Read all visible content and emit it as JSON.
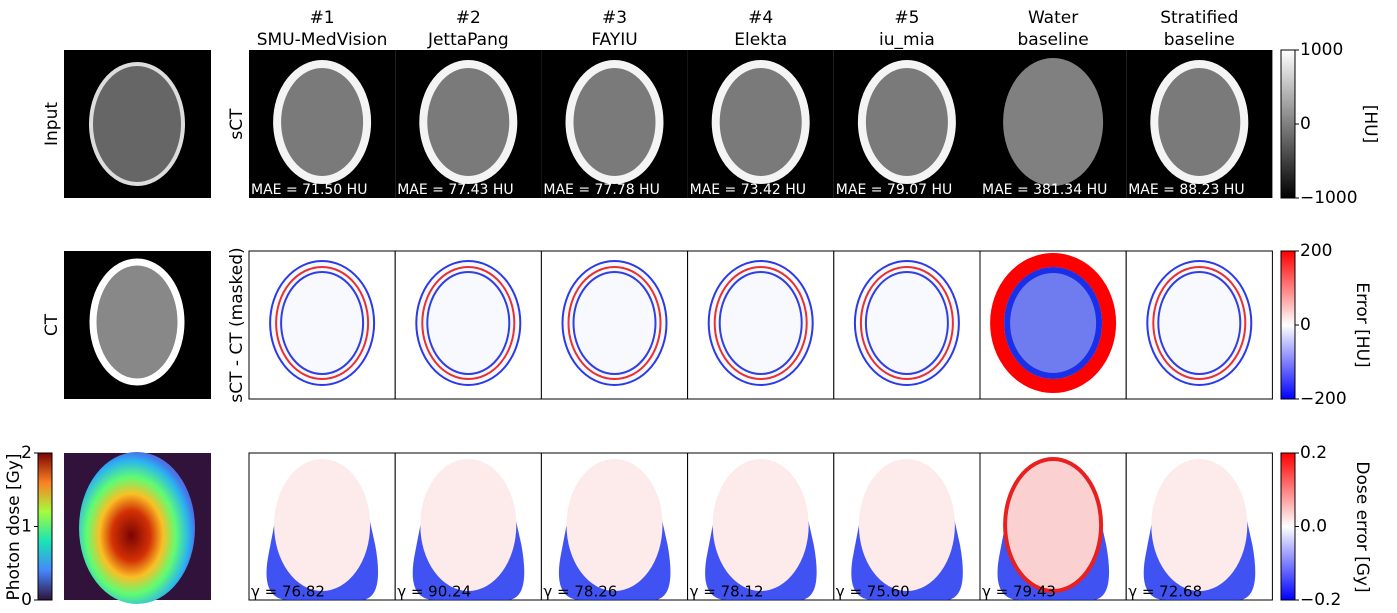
{
  "row_labels": {
    "input": "Input",
    "ct": "CT",
    "dose": "Photon dose [Gy]",
    "sct": "sCT",
    "diff": "sCT - CT (masked)"
  },
  "columns": [
    {
      "rank": "#1",
      "name": "SMU-MedVision",
      "mae": "MAE = 71.50 HU",
      "gamma": "γ = 76.82"
    },
    {
      "rank": "#2",
      "name": "JettaPang",
      "mae": "MAE = 77.43 HU",
      "gamma": "γ = 90.24"
    },
    {
      "rank": "#3",
      "name": "FAYIU",
      "mae": "MAE = 77.78 HU",
      "gamma": "γ = 78.26"
    },
    {
      "rank": "#4",
      "name": "Elekta",
      "mae": "MAE = 73.42 HU",
      "gamma": "γ = 78.12"
    },
    {
      "rank": "#5",
      "name": "iu_mia",
      "mae": "MAE = 79.07 HU",
      "gamma": "γ = 75.60"
    },
    {
      "rank": "Water",
      "name": "baseline",
      "mae": "MAE = 381.34 HU",
      "gamma": "γ = 79.43"
    },
    {
      "rank": "Stratified",
      "name": "baseline",
      "mae": "MAE = 88.23 HU",
      "gamma": "γ = 72.68"
    }
  ],
  "colorbars": {
    "hu": {
      "label": "[HU]",
      "ticks": [
        "1000",
        "0",
        "−1000"
      ]
    },
    "error": {
      "label": "Error [HU]",
      "ticks": [
        "200",
        "0",
        "−200"
      ]
    },
    "dose_error": {
      "label": "Dose error [Gy]",
      "ticks": [
        "0.2",
        "0.0",
        "−0.2"
      ]
    },
    "dose": {
      "ticks": [
        "2",
        "1",
        "0"
      ]
    }
  }
}
